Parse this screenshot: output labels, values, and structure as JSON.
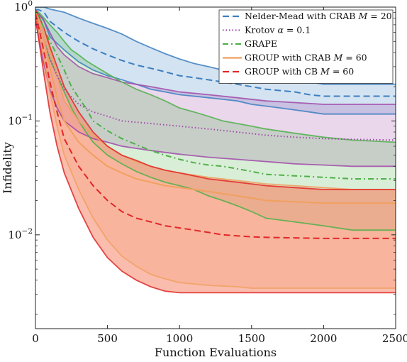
{
  "chart_data": {
    "type": "line",
    "title": "",
    "xlabel": "Function Evaluations",
    "ylabel": "Infidelity",
    "xlim": [
      0,
      2500
    ],
    "ylim": [
      0.0015,
      1
    ],
    "yscale": "log",
    "xticks": [
      0,
      500,
      1000,
      1500,
      2000,
      2500
    ],
    "xtick_labels": [
      "0",
      "500",
      "1000",
      "1500",
      "2000",
      "2500"
    ],
    "yticks": [
      1,
      0.1,
      0.01
    ],
    "ytick_labels": [
      {
        "base": "10",
        "exp": "0"
      },
      {
        "base": "10",
        "exp": "−1"
      },
      {
        "base": "10",
        "exp": "−2"
      }
    ],
    "grid": false,
    "legend_position": "top-right",
    "series": [
      {
        "name": "Nelder-Mead with CRAB M = 20",
        "legend": {
          "prefix": "Nelder-Mead with CRAB ",
          "var": "M",
          "suffix": " = 20"
        },
        "color": "#3d7fc1",
        "fill": "#3d7fc1",
        "dash": "dashed",
        "x": [
          0,
          20,
          60,
          100,
          200,
          300,
          400,
          500,
          600,
          700,
          800,
          900,
          1000,
          1100,
          1200,
          1300,
          1400,
          1500,
          1600,
          1700,
          1800,
          1900,
          2000,
          2200,
          2500
        ],
        "median": [
          0.95,
          0.95,
          0.9,
          0.75,
          0.6,
          0.5,
          0.43,
          0.38,
          0.34,
          0.31,
          0.29,
          0.27,
          0.25,
          0.24,
          0.23,
          0.22,
          0.21,
          0.2,
          0.19,
          0.185,
          0.18,
          0.17,
          0.165,
          0.165,
          0.165
        ],
        "upper": [
          1.0,
          1.0,
          1.0,
          0.96,
          0.9,
          0.8,
          0.72,
          0.65,
          0.58,
          0.5,
          0.44,
          0.39,
          0.35,
          0.32,
          0.3,
          0.28,
          0.27,
          0.26,
          0.25,
          0.24,
          0.23,
          0.22,
          0.21,
          0.21,
          0.21
        ],
        "lower": [
          0.88,
          0.88,
          0.75,
          0.55,
          0.42,
          0.33,
          0.28,
          0.25,
          0.23,
          0.21,
          0.19,
          0.18,
          0.17,
          0.165,
          0.16,
          0.155,
          0.15,
          0.14,
          0.135,
          0.13,
          0.125,
          0.12,
          0.115,
          0.115,
          0.115
        ]
      },
      {
        "name": "Krotov α = 0.1",
        "legend": {
          "prefix": "Krotov ",
          "var": "α",
          "suffix": " = 0.1"
        },
        "color": "#a04aa8",
        "fill": "#a04aa8",
        "dash": "dotted",
        "x": [
          0,
          50,
          100,
          150,
          200,
          300,
          400,
          500,
          600,
          800,
          1000,
          1200,
          1400,
          1600,
          1800,
          2000,
          2200,
          2500
        ],
        "median": [
          0.85,
          0.55,
          0.35,
          0.25,
          0.19,
          0.14,
          0.12,
          0.11,
          0.1,
          0.095,
          0.09,
          0.085,
          0.08,
          0.075,
          0.072,
          0.07,
          0.069,
          0.068
        ],
        "upper": [
          0.92,
          0.8,
          0.6,
          0.45,
          0.38,
          0.3,
          0.26,
          0.24,
          0.22,
          0.2,
          0.18,
          0.17,
          0.16,
          0.15,
          0.145,
          0.14,
          0.14,
          0.14
        ],
        "lower": [
          0.78,
          0.35,
          0.19,
          0.13,
          0.1,
          0.08,
          0.07,
          0.065,
          0.06,
          0.055,
          0.051,
          0.048,
          0.046,
          0.044,
          0.042,
          0.041,
          0.04,
          0.04
        ]
      },
      {
        "name": "GRAPE",
        "legend": {
          "prefix": "GRAPE",
          "var": "",
          "suffix": ""
        },
        "color": "#4fb04a",
        "fill": "#4fb04a",
        "dash": "dashdot",
        "x": [
          0,
          30,
          60,
          100,
          150,
          200,
          250,
          300,
          350,
          400,
          500,
          600,
          700,
          800,
          900,
          1000,
          1100,
          1200,
          1300,
          1400,
          1500,
          1600,
          1800,
          2000,
          2200,
          2500
        ],
        "median": [
          0.9,
          0.8,
          0.65,
          0.5,
          0.38,
          0.28,
          0.2,
          0.16,
          0.13,
          0.1,
          0.082,
          0.07,
          0.062,
          0.055,
          0.05,
          0.046,
          0.043,
          0.041,
          0.04,
          0.038,
          0.036,
          0.034,
          0.033,
          0.032,
          0.031,
          0.031
        ],
        "upper": [
          0.95,
          0.88,
          0.8,
          0.7,
          0.6,
          0.5,
          0.42,
          0.38,
          0.34,
          0.31,
          0.26,
          0.22,
          0.19,
          0.17,
          0.15,
          0.13,
          0.12,
          0.11,
          0.1,
          0.095,
          0.09,
          0.085,
          0.078,
          0.072,
          0.068,
          0.065
        ],
        "lower": [
          0.85,
          0.7,
          0.5,
          0.35,
          0.25,
          0.18,
          0.13,
          0.1,
          0.08,
          0.065,
          0.05,
          0.042,
          0.036,
          0.032,
          0.029,
          0.027,
          0.025,
          0.022,
          0.02,
          0.018,
          0.016,
          0.014,
          0.013,
          0.012,
          0.011,
          0.011
        ]
      },
      {
        "name": "GROUP with CRAB M = 60",
        "legend": {
          "prefix": "GROUP with CRAB ",
          "var": "M",
          "suffix": " = 60"
        },
        "color": "#f0a060",
        "fill": "#f0a060",
        "dash": "solid",
        "x": [
          0,
          30,
          60,
          100,
          150,
          200,
          300,
          400,
          500,
          600,
          700,
          800,
          900,
          1000,
          1200,
          1400,
          1500,
          1600,
          1800,
          2000,
          2200,
          2500
        ],
        "median": [
          0.9,
          0.7,
          0.5,
          0.3,
          0.16,
          0.1,
          0.065,
          0.05,
          0.04,
          0.035,
          0.031,
          0.029,
          0.027,
          0.026,
          0.024,
          0.022,
          0.021,
          0.02,
          0.0195,
          0.019,
          0.019,
          0.019
        ],
        "upper": [
          0.95,
          0.8,
          0.65,
          0.42,
          0.25,
          0.15,
          0.1,
          0.075,
          0.06,
          0.05,
          0.044,
          0.04,
          0.037,
          0.035,
          0.032,
          0.03,
          0.029,
          0.028,
          0.027,
          0.026,
          0.025,
          0.025
        ],
        "lower": [
          0.85,
          0.55,
          0.35,
          0.18,
          0.09,
          0.05,
          0.025,
          0.014,
          0.009,
          0.0065,
          0.0053,
          0.0045,
          0.0041,
          0.0038,
          0.0036,
          0.0035,
          0.0034,
          0.0034,
          0.0034,
          0.0034,
          0.0034,
          0.0034
        ]
      },
      {
        "name": "GROUP with CB M = 60",
        "legend": {
          "prefix": "GROUP with CB ",
          "var": "M",
          "suffix": " = 60"
        },
        "color": "#e02828",
        "fill": "#f5866a",
        "dash": "dashed",
        "x": [
          0,
          30,
          60,
          100,
          150,
          200,
          300,
          400,
          500,
          600,
          700,
          800,
          900,
          1000,
          1100,
          1200,
          1300,
          1400,
          1500,
          1600,
          1800,
          2000,
          2200,
          2500
        ],
        "median": [
          0.88,
          0.6,
          0.4,
          0.22,
          0.12,
          0.07,
          0.04,
          0.027,
          0.02,
          0.016,
          0.014,
          0.013,
          0.012,
          0.0115,
          0.011,
          0.0105,
          0.01,
          0.0098,
          0.0096,
          0.0095,
          0.0094,
          0.0093,
          0.0093,
          0.0093
        ],
        "upper": [
          0.95,
          0.8,
          0.65,
          0.45,
          0.3,
          0.2,
          0.12,
          0.08,
          0.06,
          0.05,
          0.045,
          0.04,
          0.037,
          0.035,
          0.033,
          0.031,
          0.03,
          0.029,
          0.028,
          0.027,
          0.026,
          0.025,
          0.025,
          0.025
        ],
        "lower": [
          0.8,
          0.45,
          0.25,
          0.12,
          0.06,
          0.035,
          0.017,
          0.0095,
          0.0063,
          0.0048,
          0.004,
          0.0035,
          0.0032,
          0.0031,
          0.0031,
          0.0031,
          0.0031,
          0.0031,
          0.0031,
          0.0031,
          0.0031,
          0.0031,
          0.0031,
          0.0031
        ]
      }
    ]
  }
}
